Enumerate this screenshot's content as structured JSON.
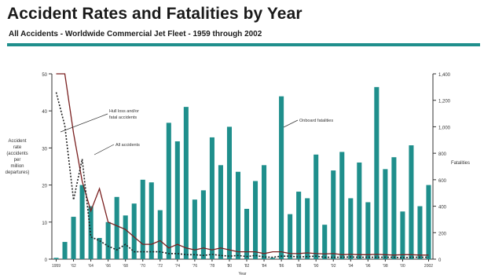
{
  "header": {
    "title": "Accident Rates and Fatalities by Year",
    "subtitle": "All Accidents - Worldwide Commercial Jet Fleet - 1959 through 2002"
  },
  "colors": {
    "bar": "#1f8f8c",
    "rule": "#1f8f8c",
    "hull_loss_line": "#222222",
    "all_accidents_line": "#7a2020"
  },
  "chart_data": {
    "type": "bar",
    "title": "Accident Rates and Fatalities by Year",
    "subtitle": "All Accidents - Worldwide Commercial Jet Fleet - 1959 through 2002",
    "xlabel": "Year",
    "ylabel_left": "Accident rate (accidents per million departures)",
    "ylabel_left_lines": [
      "Accident",
      "rate",
      "(accidents",
      "per",
      "million",
      "departures)"
    ],
    "ylabel_right": "Fatalities",
    "x_tick_labels": [
      "1959",
      "'62",
      "'64",
      "'66",
      "'68",
      "'70",
      "'72",
      "'74",
      "'76",
      "'78",
      "'80",
      "'82",
      "'84",
      "'86",
      "'88",
      "'90",
      "'92",
      "'94",
      "'96",
      "'98",
      "'00",
      "2002"
    ],
    "left_ylim": [
      0,
      50
    ],
    "left_ticks": [
      0,
      10,
      20,
      30,
      40,
      50
    ],
    "right_ylim": [
      0,
      1400
    ],
    "right_ticks": [
      0,
      200,
      400,
      600,
      800,
      1000,
      1200,
      1400
    ],
    "years": [
      1959,
      1960,
      1961,
      1962,
      1963,
      1964,
      1965,
      1966,
      1967,
      1968,
      1969,
      1970,
      1971,
      1972,
      1973,
      1974,
      1975,
      1976,
      1977,
      1978,
      1979,
      1980,
      1981,
      1982,
      1983,
      1984,
      1985,
      1986,
      1987,
      1988,
      1989,
      1990,
      1991,
      1992,
      1993,
      1994,
      1995,
      1996,
      1997,
      1998,
      1999,
      2000,
      2001,
      2002
    ],
    "series": [
      {
        "name": "Onboard fatalities",
        "kind": "bar",
        "axis": "right",
        "values": [
          10,
          130,
          320,
          560,
          400,
          160,
          280,
          470,
          330,
          420,
          600,
          580,
          370,
          1030,
          890,
          1150,
          450,
          520,
          920,
          710,
          1000,
          660,
          380,
          590,
          710,
          10,
          1230,
          340,
          510,
          460,
          790,
          260,
          670,
          810,
          460,
          730,
          430,
          1300,
          680,
          770,
          360,
          860,
          400,
          560
        ]
      },
      {
        "name": "All accidents",
        "kind": "line",
        "axis": "left",
        "values": [
          50,
          50,
          34,
          21,
          13,
          19,
          10,
          9,
          8,
          6,
          4,
          4,
          5,
          3,
          4,
          3,
          2.5,
          3,
          2.5,
          3,
          2.5,
          2,
          2,
          2,
          1.5,
          2,
          2,
          1.5,
          1.5,
          1.7,
          1.5,
          1.4,
          1.5,
          1.2,
          1.3,
          1.2,
          1.2,
          1.3,
          1.2,
          1.1,
          1.2,
          1.2,
          1.1,
          1.1
        ]
      },
      {
        "name": "Hull loss and/or fatal accidents",
        "kind": "line",
        "axis": "left",
        "values": [
          45,
          36,
          16,
          27,
          6,
          5,
          3.5,
          2.5,
          4,
          2,
          2,
          2,
          2,
          1.5,
          1.5,
          1.2,
          1.2,
          1,
          1.3,
          1,
          0.8,
          1,
          0.7,
          1,
          0.6,
          0.5,
          0.8,
          0.8,
          0.6,
          0.7,
          0.8,
          0.5,
          0.5,
          0.5,
          0.6,
          0.5,
          0.5,
          0.5,
          0.5,
          0.5,
          0.4,
          0.5,
          0.5,
          0.5
        ]
      }
    ],
    "annotations": [
      {
        "text_lines": [
          "Hull loss and/or",
          "fatal accidents"
        ],
        "series": "Hull loss and/or fatal accidents"
      },
      {
        "text_lines": [
          "All accidents"
        ],
        "series": "All accidents"
      },
      {
        "text_lines": [
          "Onboard fatalities"
        ],
        "series": "Onboard fatalities"
      }
    ],
    "grid": false,
    "legend": "none"
  }
}
